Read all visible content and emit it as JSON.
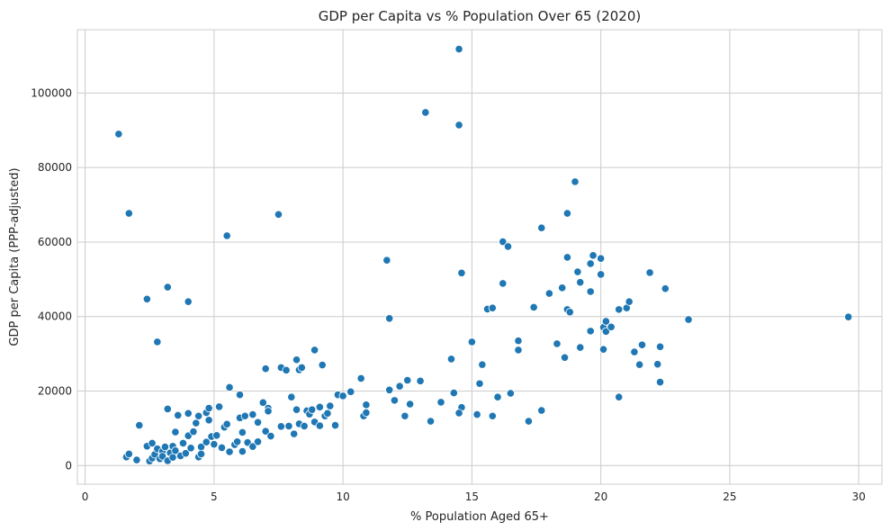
{
  "chart_data": {
    "type": "scatter",
    "title": "GDP per Capita vs % Population Over 65 (2020)",
    "xlabel": "% Population Aged 65+",
    "ylabel": "GDP per Capita (PPP-adjusted)",
    "xlim": [
      -0.3,
      30.9
    ],
    "ylim": [
      -5000,
      117000
    ],
    "xticks": [
      0,
      5,
      10,
      15,
      20,
      25,
      30
    ],
    "yticks": [
      0,
      20000,
      40000,
      60000,
      80000,
      100000
    ],
    "grid": true,
    "marker_color": "#1f77b4",
    "points": [
      [
        1.3,
        89000
      ],
      [
        1.7,
        67700
      ],
      [
        2.4,
        44700
      ],
      [
        2.8,
        33200
      ],
      [
        3.2,
        47900
      ],
      [
        3.2,
        15200
      ],
      [
        4.0,
        44000
      ],
      [
        5.5,
        61700
      ],
      [
        7.5,
        67400
      ],
      [
        2.1,
        10800
      ],
      [
        1.6,
        2300
      ],
      [
        1.7,
        3100
      ],
      [
        2.0,
        1500
      ],
      [
        2.4,
        5200
      ],
      [
        2.5,
        1200
      ],
      [
        2.6,
        2000
      ],
      [
        2.6,
        6000
      ],
      [
        2.7,
        3000
      ],
      [
        2.8,
        4500
      ],
      [
        2.9,
        1800
      ],
      [
        3.0,
        3800
      ],
      [
        3.0,
        2500
      ],
      [
        3.1,
        5000
      ],
      [
        3.2,
        1300
      ],
      [
        3.3,
        3400
      ],
      [
        3.4,
        5200
      ],
      [
        3.4,
        2200
      ],
      [
        3.5,
        4000
      ],
      [
        3.5,
        9000
      ],
      [
        3.6,
        13500
      ],
      [
        3.7,
        2600
      ],
      [
        3.8,
        6000
      ],
      [
        3.9,
        3300
      ],
      [
        4.0,
        14000
      ],
      [
        4.0,
        8000
      ],
      [
        4.1,
        4700
      ],
      [
        4.2,
        9100
      ],
      [
        4.3,
        11400
      ],
      [
        4.4,
        2300
      ],
      [
        4.4,
        13300
      ],
      [
        4.5,
        5000
      ],
      [
        4.5,
        3100
      ],
      [
        4.7,
        6300
      ],
      [
        4.7,
        14200
      ],
      [
        4.8,
        15400
      ],
      [
        4.8,
        12200
      ],
      [
        4.9,
        7800
      ],
      [
        5.0,
        5700
      ],
      [
        5.1,
        8100
      ],
      [
        5.2,
        15800
      ],
      [
        5.3,
        4800
      ],
      [
        5.4,
        10300
      ],
      [
        5.5,
        11100
      ],
      [
        5.6,
        21000
      ],
      [
        5.6,
        3700
      ],
      [
        5.8,
        5600
      ],
      [
        5.9,
        6400
      ],
      [
        6.0,
        19000
      ],
      [
        6.0,
        12800
      ],
      [
        6.1,
        8900
      ],
      [
        6.1,
        3800
      ],
      [
        6.2,
        13300
      ],
      [
        6.3,
        6200
      ],
      [
        6.5,
        13700
      ],
      [
        6.5,
        5100
      ],
      [
        6.7,
        11600
      ],
      [
        6.7,
        6400
      ],
      [
        6.9,
        16900
      ],
      [
        7.0,
        9200
      ],
      [
        7.1,
        15400
      ],
      [
        7.1,
        14600
      ],
      [
        7.2,
        7900
      ],
      [
        7.0,
        26000
      ],
      [
        7.6,
        26300
      ],
      [
        7.6,
        10500
      ],
      [
        7.8,
        25600
      ],
      [
        7.9,
        10600
      ],
      [
        8.0,
        18400
      ],
      [
        8.1,
        8500
      ],
      [
        8.2,
        15000
      ],
      [
        8.2,
        28400
      ],
      [
        8.3,
        11200
      ],
      [
        8.3,
        25700
      ],
      [
        8.4,
        26300
      ],
      [
        8.5,
        10600
      ],
      [
        8.6,
        14700
      ],
      [
        8.7,
        13800
      ],
      [
        8.8,
        15000
      ],
      [
        8.9,
        31000
      ],
      [
        8.9,
        11700
      ],
      [
        9.1,
        10700
      ],
      [
        9.1,
        15700
      ],
      [
        9.2,
        27000
      ],
      [
        9.3,
        13300
      ],
      [
        9.4,
        14000
      ],
      [
        9.5,
        16000
      ],
      [
        9.7,
        10800
      ],
      [
        9.8,
        19000
      ],
      [
        10.0,
        18700
      ],
      [
        10.3,
        19800
      ],
      [
        10.7,
        23400
      ],
      [
        10.8,
        13300
      ],
      [
        10.9,
        14200
      ],
      [
        10.9,
        16300
      ],
      [
        11.7,
        55100
      ],
      [
        11.8,
        39500
      ],
      [
        11.8,
        20300
      ],
      [
        12.0,
        17500
      ],
      [
        12.2,
        21300
      ],
      [
        12.4,
        13300
      ],
      [
        12.5,
        22900
      ],
      [
        12.6,
        16500
      ],
      [
        13.0,
        22700
      ],
      [
        13.2,
        94800
      ],
      [
        13.4,
        11900
      ],
      [
        13.8,
        17000
      ],
      [
        14.2,
        28600
      ],
      [
        14.3,
        19500
      ],
      [
        14.5,
        111800
      ],
      [
        14.5,
        91400
      ],
      [
        14.6,
        51700
      ],
      [
        14.6,
        15600
      ],
      [
        14.5,
        14100
      ],
      [
        15.0,
        33200
      ],
      [
        15.2,
        13700
      ],
      [
        15.4,
        27100
      ],
      [
        15.3,
        22000
      ],
      [
        15.6,
        42000
      ],
      [
        15.8,
        42300
      ],
      [
        15.8,
        13300
      ],
      [
        16.0,
        18400
      ],
      [
        16.2,
        60100
      ],
      [
        16.2,
        48900
      ],
      [
        16.4,
        58800
      ],
      [
        16.5,
        19400
      ],
      [
        16.8,
        33500
      ],
      [
        16.8,
        31000
      ],
      [
        17.2,
        11900
      ],
      [
        17.4,
        42500
      ],
      [
        17.7,
        63800
      ],
      [
        17.7,
        14800
      ],
      [
        18.0,
        46200
      ],
      [
        18.3,
        32700
      ],
      [
        18.5,
        47700
      ],
      [
        18.7,
        67700
      ],
      [
        18.7,
        55900
      ],
      [
        18.7,
        41900
      ],
      [
        18.8,
        41200
      ],
      [
        18.6,
        29000
      ],
      [
        19.0,
        76200
      ],
      [
        19.1,
        52000
      ],
      [
        19.2,
        49200
      ],
      [
        19.2,
        31700
      ],
      [
        19.6,
        54200
      ],
      [
        19.7,
        56400
      ],
      [
        19.6,
        46700
      ],
      [
        19.6,
        36100
      ],
      [
        20.0,
        55600
      ],
      [
        20.0,
        51300
      ],
      [
        20.1,
        37100
      ],
      [
        20.1,
        31200
      ],
      [
        20.2,
        38700
      ],
      [
        20.2,
        36000
      ],
      [
        20.4,
        37200
      ],
      [
        20.7,
        41900
      ],
      [
        20.7,
        18400
      ],
      [
        21.0,
        42300
      ],
      [
        21.1,
        44000
      ],
      [
        21.3,
        30500
      ],
      [
        21.5,
        27100
      ],
      [
        21.6,
        32400
      ],
      [
        21.9,
        51800
      ],
      [
        22.2,
        27200
      ],
      [
        22.3,
        31900
      ],
      [
        22.3,
        22400
      ],
      [
        22.5,
        47500
      ],
      [
        23.4,
        39200
      ],
      [
        29.6,
        39900
      ]
    ]
  }
}
